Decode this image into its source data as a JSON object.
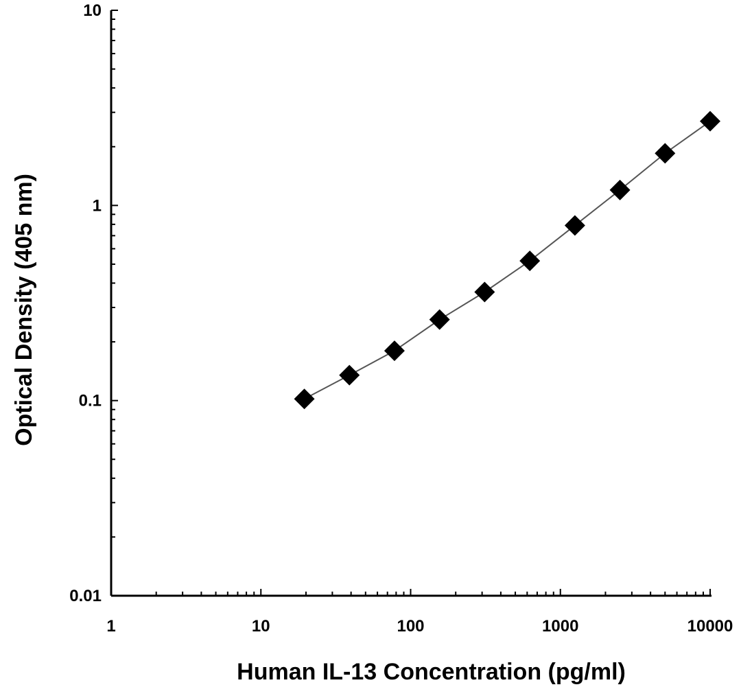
{
  "chart_data": {
    "type": "scatter",
    "xlabel": "Human IL-13 Concentration (pg/ml)",
    "ylabel": "Optical Density (405 nm)",
    "x_scale": "log",
    "y_scale": "log",
    "xlim": [
      1,
      10000
    ],
    "ylim": [
      0.01,
      10
    ],
    "grid": false,
    "x_ticks": [
      "1",
      "10",
      "100",
      "1000",
      "10000"
    ],
    "y_ticks": [
      "10",
      "1",
      "0.1",
      "0.01"
    ],
    "series": [
      {
        "x": [
          19.5,
          39,
          78,
          156,
          312,
          625,
          1250,
          2500,
          5000,
          10000
        ],
        "y": [
          0.102,
          0.135,
          0.18,
          0.26,
          0.36,
          0.52,
          0.79,
          1.2,
          1.85,
          2.7
        ],
        "marker": "diamond",
        "line": true,
        "color": "#000000",
        "line_color": "#555555"
      }
    ]
  }
}
